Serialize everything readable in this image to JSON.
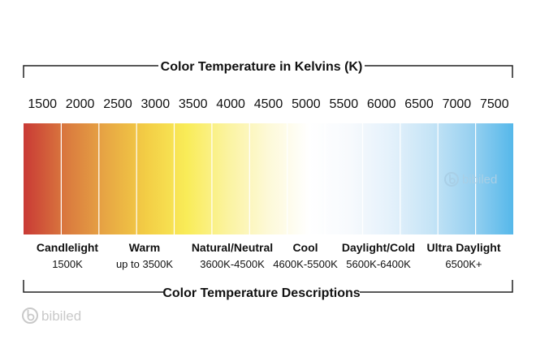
{
  "titles": {
    "top": "Color Temperature in Kelvins (K)",
    "bottom": "Color Temperature Descriptions"
  },
  "scale": {
    "ticks": [
      "1500",
      "2000",
      "2500",
      "3000",
      "3500",
      "4000",
      "4500",
      "5000",
      "5500",
      "6000",
      "6500",
      "7000",
      "7500"
    ],
    "segment_colors": [
      "#c93a35",
      "#d9773e",
      "#e7a644",
      "#f3cd45",
      "#f9ec58",
      "#fbf3a0",
      "#fdf9d8",
      "#ffffff",
      "#f7fafd",
      "#e4f1fb",
      "#c5e4f6",
      "#97d0f0",
      "#55b8ea"
    ]
  },
  "categories": [
    {
      "name": "Candlelight",
      "range": "1500K"
    },
    {
      "name": "Warm",
      "range": "up to 3500K"
    },
    {
      "name": "Natural/Neutral",
      "range": "3600K-4500K"
    },
    {
      "name": "Cool",
      "range": "4600K-5500K"
    },
    {
      "name": "Daylight/Cold",
      "range": "5600K-6400K"
    },
    {
      "name": "Ultra Daylight",
      "range": "6500K+"
    }
  ],
  "watermark": {
    "brand": "bibiled"
  },
  "colors": {
    "frame": "#222222",
    "divider": "#ffffff"
  }
}
